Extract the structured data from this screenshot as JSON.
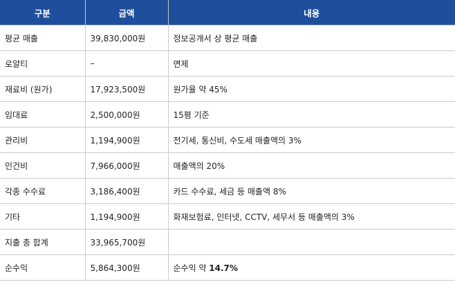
{
  "table": {
    "headers": [
      "구분",
      "금액",
      "내용"
    ],
    "rows": [
      {
        "category": "평균 매출",
        "amount": "39,830,000원",
        "detail": "정보공개서 상 평균 매출"
      },
      {
        "category": "로얄티",
        "amount": "–",
        "detail": "면제"
      },
      {
        "category": "재료비 (원가)",
        "amount": "17,923,500원",
        "detail": "원가율 약 45%"
      },
      {
        "category": "임대료",
        "amount": "2,500,000원",
        "detail": "15평 기준"
      },
      {
        "category": "관리비",
        "amount": "1,194,900원",
        "detail": "전기세, 통신비, 수도세 매출액의 3%"
      },
      {
        "category": "인건비",
        "amount": "7,966,000원",
        "detail": "매출액의 20%"
      },
      {
        "category": "각종 수수료",
        "amount": "3,186,400원",
        "detail": "카드 수수료, 세금 등 매출액 8%"
      },
      {
        "category": "기타",
        "amount": "1,194,900원",
        "detail": "화재보험료, 인터넷, CCTV, 세무서 등 매출액의 3%"
      },
      {
        "category": "지출 총 합계",
        "amount": "33,965,700원",
        "detail": ""
      },
      {
        "category": "순수익",
        "amount": "5,864,300원",
        "detail_prefix": "순수익 약 ",
        "detail_bold": "14.7%"
      }
    ]
  }
}
